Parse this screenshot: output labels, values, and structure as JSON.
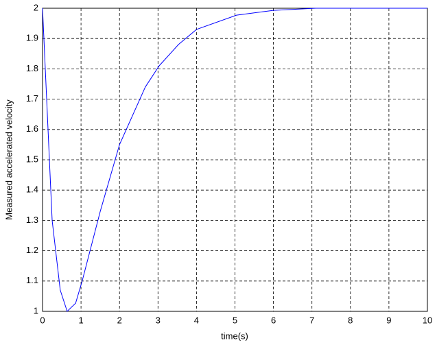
{
  "chart_data": {
    "type": "line",
    "x_label": "time(s)",
    "y_label": "Measured accelerated velocity",
    "x": [
      0,
      0.25,
      0.46,
      0.64,
      0.86,
      1.03,
      1.5,
      2.0,
      2.67,
      3.03,
      3.53,
      4.0,
      5.04,
      6.0,
      7.1,
      10
    ],
    "series": [
      {
        "name": "velocity",
        "color": "#0000ff",
        "values": [
          2.0,
          1.3,
          1.07,
          1.0,
          1.027,
          1.1,
          1.33,
          1.55,
          1.74,
          1.81,
          1.88,
          1.93,
          1.977,
          1.993,
          2.0,
          2.0
        ]
      }
    ],
    "xlim": [
      0,
      10
    ],
    "ylim": [
      1,
      2
    ],
    "xticks": [
      0,
      1,
      2,
      3,
      4,
      5,
      6,
      7,
      8,
      9,
      10
    ],
    "yticks": [
      1,
      1.1,
      1.2,
      1.3,
      1.4,
      1.5,
      1.6,
      1.7,
      1.8,
      1.9,
      2
    ],
    "grid": true
  }
}
